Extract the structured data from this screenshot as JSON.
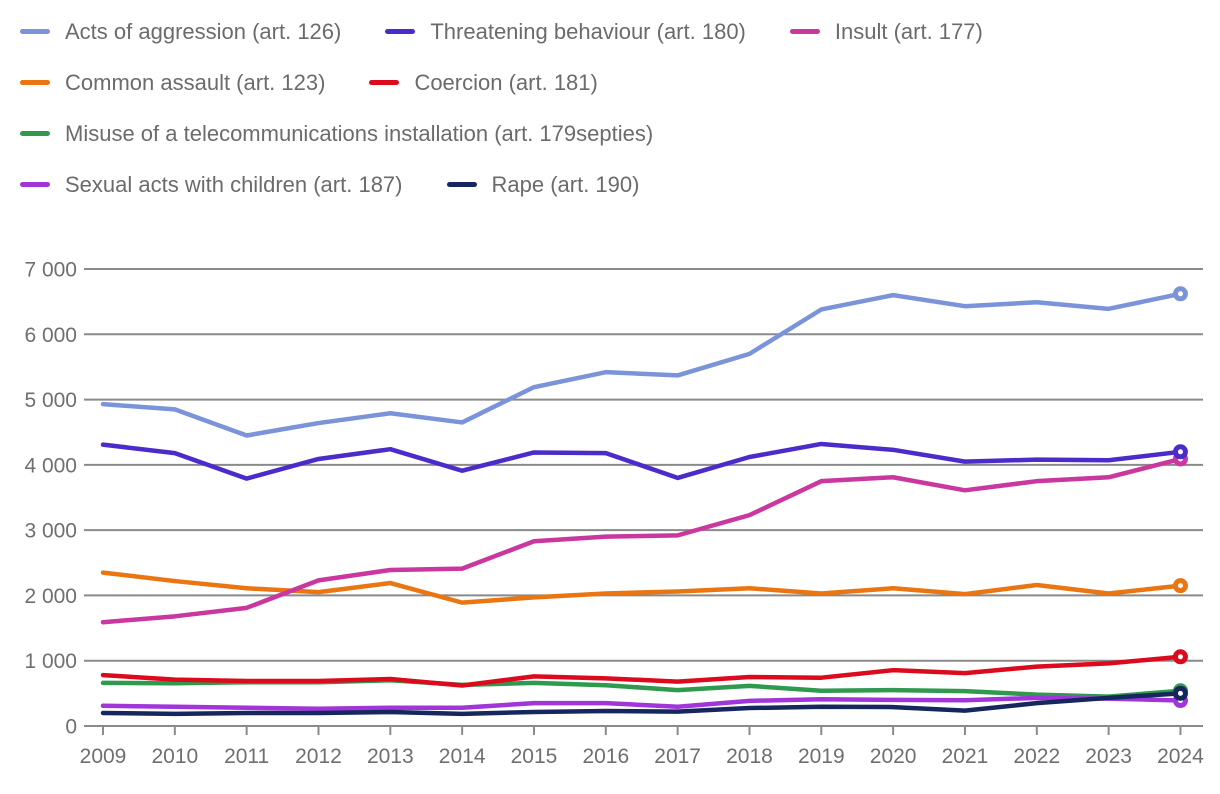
{
  "chart_data": {
    "type": "line",
    "x": [
      2009,
      2010,
      2011,
      2012,
      2013,
      2014,
      2015,
      2016,
      2017,
      2018,
      2019,
      2020,
      2021,
      2022,
      2023,
      2024
    ],
    "series": [
      {
        "name": "Acts of aggression (art. 126)",
        "color": "#7b93d9",
        "values": [
          4930,
          4850,
          4450,
          4640,
          4790,
          4650,
          5190,
          5420,
          5370,
          5700,
          6380,
          6600,
          6430,
          6490,
          6390,
          6620
        ]
      },
      {
        "name": "Threatening behaviour (art. 180)",
        "color": "#4b2bc9",
        "values": [
          4310,
          4180,
          3790,
          4090,
          4240,
          3910,
          4190,
          4180,
          3800,
          4120,
          4320,
          4230,
          4050,
          4080,
          4070,
          4200
        ]
      },
      {
        "name": "Insult (art. 177)",
        "color": "#c9379f",
        "values": [
          1590,
          1680,
          1810,
          2230,
          2390,
          2410,
          2830,
          2900,
          2920,
          3230,
          3750,
          3810,
          3610,
          3750,
          3810,
          4090
        ]
      },
      {
        "name": "Common assault (art. 123)",
        "color": "#ea7511",
        "values": [
          2350,
          2220,
          2110,
          2050,
          2190,
          1890,
          1970,
          2030,
          2060,
          2110,
          2030,
          2110,
          2020,
          2160,
          2030,
          2150
        ]
      },
      {
        "name": "Coercion (art. 181)",
        "color": "#dc0a1d",
        "values": [
          780,
          710,
          690,
          690,
          720,
          620,
          760,
          730,
          680,
          750,
          740,
          855,
          810,
          910,
          960,
          1060
        ]
      },
      {
        "name": "Misuse of a telecommunications installation (art. 179septies)",
        "color": "#2f9a4e",
        "values": [
          660,
          655,
          670,
          670,
          700,
          630,
          660,
          625,
          550,
          615,
          540,
          550,
          535,
          480,
          450,
          540
        ]
      },
      {
        "name": "Sexual acts with children (art. 187)",
        "color": "#a135d9",
        "values": [
          310,
          295,
          280,
          265,
          280,
          280,
          350,
          350,
          295,
          385,
          410,
          400,
          395,
          430,
          420,
          390
        ]
      },
      {
        "name": "Rape (art. 190)",
        "color": "#16275e",
        "values": [
          200,
          185,
          200,
          200,
          215,
          185,
          215,
          230,
          220,
          275,
          295,
          290,
          235,
          350,
          430,
          500
        ]
      }
    ],
    "y_ticks": [
      "0",
      "1 000",
      "2 000",
      "3 000",
      "4 000",
      "5 000",
      "6 000",
      "7 000"
    ],
    "ylim": [
      0,
      7000
    ],
    "y_step": 1000,
    "grid": true,
    "legend_position": "top",
    "legend_rows": [
      [
        0,
        1,
        2
      ],
      [
        3,
        4
      ],
      [
        5
      ],
      [
        6,
        7
      ]
    ],
    "draw_order": [
      3,
      2,
      1,
      0,
      5,
      4,
      6,
      7
    ],
    "end_markers": true,
    "colors": {
      "grid": "#8a8a8a",
      "tick_text": "#6f6f6f",
      "legend_text": "#6b6b6b",
      "background": "#ffffff"
    }
  }
}
